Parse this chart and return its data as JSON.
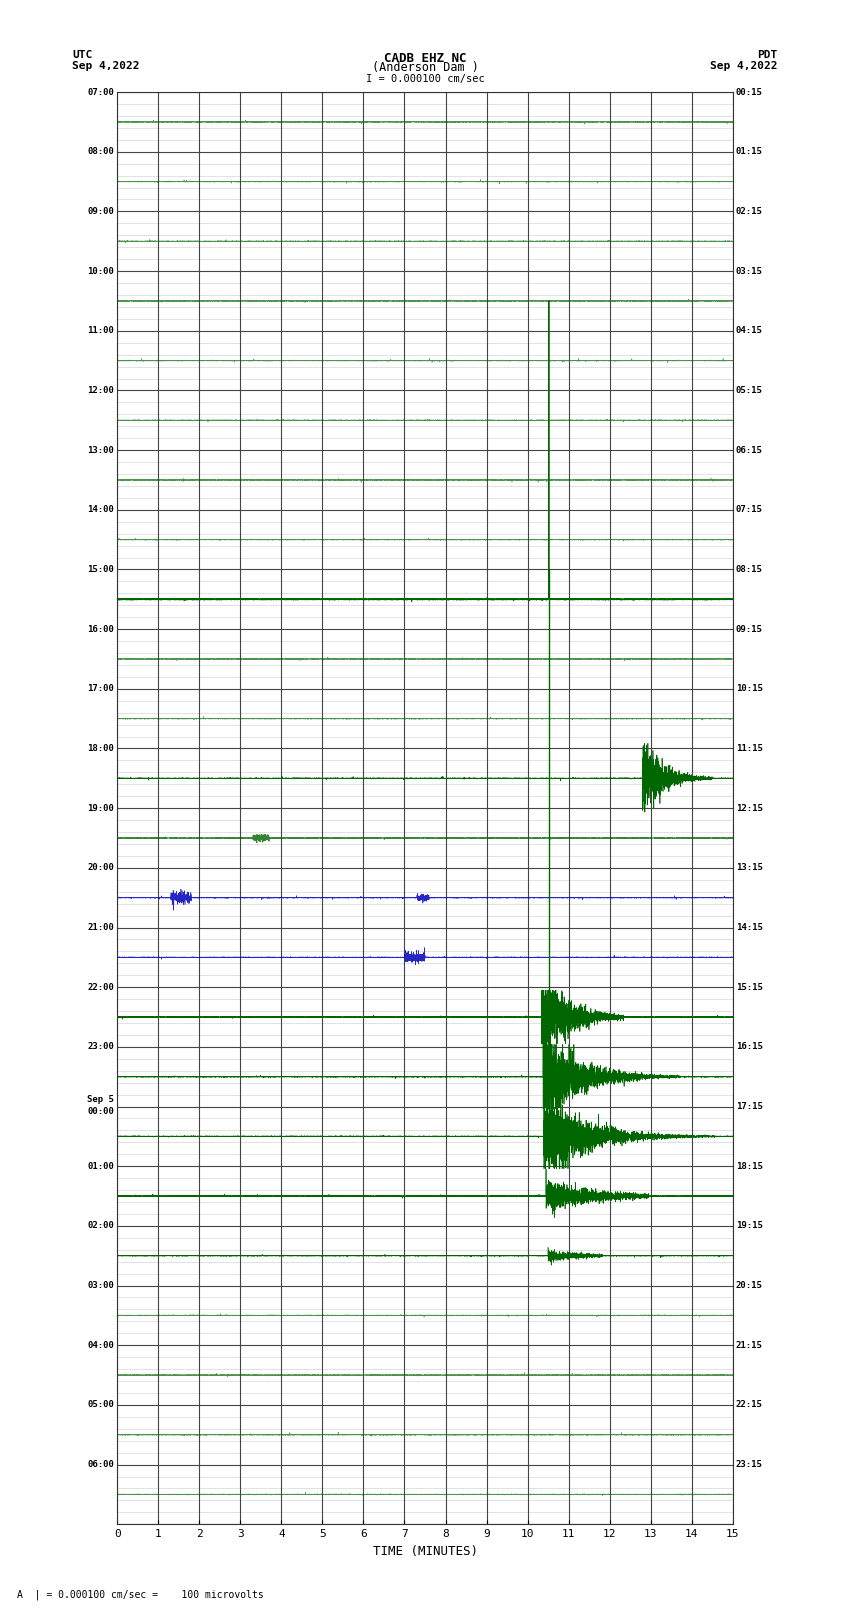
{
  "title_line1": "CADB EHZ NC",
  "title_line2": "(Anderson Dam )",
  "scale_label": "I = 0.000100 cm/sec",
  "left_timezone": "UTC",
  "right_timezone": "PDT",
  "date_left": "Sep 4,2022",
  "date_right": "Sep 4,2022",
  "bottom_label": "TIME (MINUTES)",
  "bottom_note": "A  | = 0.000100 cm/sec =    100 microvolts",
  "left_labels": [
    "07:00",
    "08:00",
    "09:00",
    "10:00",
    "11:00",
    "12:00",
    "13:00",
    "14:00",
    "15:00",
    "16:00",
    "17:00",
    "18:00",
    "19:00",
    "20:00",
    "21:00",
    "22:00",
    "23:00",
    "Sep 5\n00:00",
    "01:00",
    "02:00",
    "03:00",
    "04:00",
    "05:00",
    "06:00"
  ],
  "right_labels": [
    "00:15",
    "01:15",
    "02:15",
    "03:15",
    "04:15",
    "05:15",
    "06:15",
    "07:15",
    "08:15",
    "09:15",
    "10:15",
    "11:15",
    "12:15",
    "13:15",
    "14:15",
    "15:15",
    "16:15",
    "17:15",
    "18:15",
    "19:15",
    "20:15",
    "21:15",
    "22:15",
    "23:15"
  ],
  "n_rows": 24,
  "x_min": 0,
  "x_max": 15,
  "x_ticks": [
    0,
    1,
    2,
    3,
    4,
    5,
    6,
    7,
    8,
    9,
    10,
    11,
    12,
    13,
    14,
    15
  ],
  "signal_color": "#006600",
  "noise_color": "#0000bb",
  "bg_color": "#ffffff",
  "grid_color": "#888888",
  "minor_grid_color": "#cccccc",
  "line_color": "#000000"
}
